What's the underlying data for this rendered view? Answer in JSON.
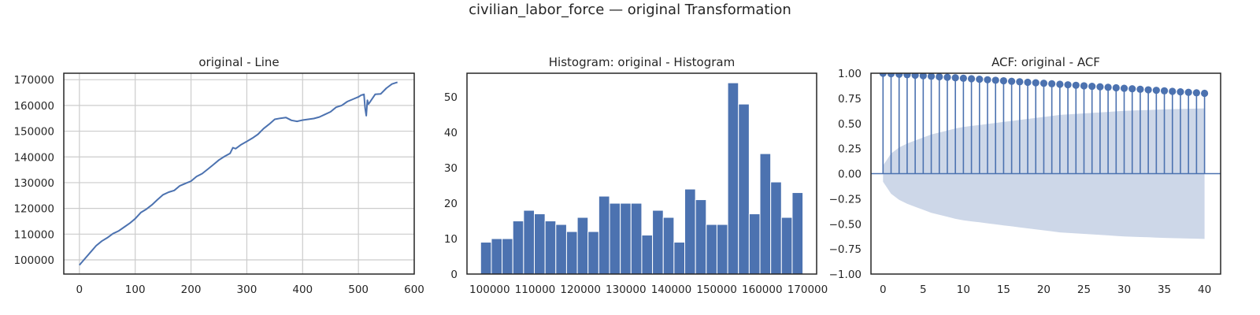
{
  "figure": {
    "title": "civilian_labor_force — original Transformation"
  },
  "colors": {
    "series": "#4c72b0",
    "confidence_band": "#cdd7e8",
    "grid": "#cccccc",
    "axes_edge": "#262626"
  },
  "chart_data": [
    {
      "type": "line",
      "title": "original - Line",
      "xlabel": "",
      "ylabel": "",
      "xlim": [
        -28,
        600
      ],
      "ylim": [
        94500,
        172500
      ],
      "xticks": [
        0,
        100,
        200,
        300,
        400,
        500,
        600
      ],
      "yticks": [
        100000,
        110000,
        120000,
        130000,
        140000,
        150000,
        160000,
        170000
      ],
      "grid": true,
      "x": [
        0,
        10,
        20,
        30,
        40,
        50,
        60,
        70,
        80,
        90,
        100,
        110,
        120,
        130,
        140,
        150,
        160,
        170,
        180,
        190,
        200,
        210,
        220,
        230,
        240,
        250,
        260,
        270,
        275,
        280,
        290,
        300,
        310,
        320,
        330,
        340,
        350,
        360,
        370,
        380,
        390,
        400,
        410,
        420,
        430,
        440,
        450,
        460,
        470,
        480,
        490,
        500,
        505,
        510,
        512,
        514,
        516,
        518,
        520,
        530,
        540,
        550,
        560,
        570
      ],
      "values": [
        98000,
        100500,
        103000,
        105500,
        107300,
        108600,
        110200,
        111200,
        112700,
        114200,
        116000,
        118400,
        119700,
        121400,
        123400,
        125300,
        126300,
        127000,
        128800,
        129700,
        130600,
        132400,
        133500,
        135200,
        137000,
        138800,
        140200,
        141400,
        143600,
        143200,
        144800,
        146000,
        147300,
        148800,
        151000,
        152700,
        154600,
        155000,
        155300,
        154200,
        153800,
        154300,
        154600,
        154900,
        155500,
        156500,
        157500,
        159300,
        160000,
        161500,
        162400,
        163300,
        164000,
        164300,
        159000,
        156000,
        162000,
        160500,
        161100,
        164300,
        164500,
        166700,
        168300,
        169000
      ]
    },
    {
      "type": "bar",
      "title": "Histogram: original - Histogram",
      "xlabel": "",
      "ylabel": "",
      "xlim": [
        95000,
        172000
      ],
      "ylim": [
        0,
        56.7
      ],
      "xticks": [
        100000,
        110000,
        120000,
        130000,
        140000,
        150000,
        160000,
        170000
      ],
      "yticks": [
        0,
        10,
        20,
        30,
        40,
        50
      ],
      "grid": false,
      "bin_start": 98000,
      "bin_width": 2366,
      "values": [
        9,
        10,
        10,
        15,
        18,
        17,
        15,
        14,
        12,
        16,
        12,
        22,
        20,
        20,
        20,
        11,
        18,
        16,
        9,
        24,
        21,
        14,
        14,
        54,
        48,
        17,
        34,
        26,
        16,
        23
      ]
    },
    {
      "type": "scatter",
      "title": "ACF: original - ACF",
      "xlabel": "",
      "ylabel": "",
      "xlim": [
        -1.5,
        42
      ],
      "ylim": [
        -1.0,
        1.0
      ],
      "xticks": [
        0,
        5,
        10,
        15,
        20,
        25,
        30,
        35,
        40
      ],
      "yticks": [
        -1.0,
        -0.75,
        -0.5,
        -0.25,
        0.0,
        0.25,
        0.5,
        0.75,
        1.0
      ],
      "ytick_labels": [
        "−1.00",
        "−0.75",
        "−0.50",
        "−0.25",
        "0.00",
        "0.25",
        "0.50",
        "0.75",
        "1.00"
      ],
      "grid": false,
      "lags": [
        0,
        1,
        2,
        3,
        4,
        5,
        6,
        7,
        8,
        9,
        10,
        11,
        12,
        13,
        14,
        15,
        16,
        17,
        18,
        19,
        20,
        21,
        22,
        23,
        24,
        25,
        26,
        27,
        28,
        29,
        30,
        31,
        32,
        33,
        34,
        35,
        36,
        37,
        38,
        39,
        40
      ],
      "values": [
        1.0,
        0.995,
        0.99,
        0.985,
        0.98,
        0.975,
        0.97,
        0.965,
        0.96,
        0.955,
        0.95,
        0.945,
        0.94,
        0.935,
        0.93,
        0.925,
        0.92,
        0.915,
        0.91,
        0.905,
        0.9,
        0.895,
        0.89,
        0.885,
        0.88,
        0.875,
        0.87,
        0.865,
        0.86,
        0.855,
        0.85,
        0.845,
        0.84,
        0.835,
        0.83,
        0.825,
        0.82,
        0.815,
        0.81,
        0.805,
        0.8
      ],
      "confidence_upper": [
        0.08,
        0.2,
        0.26,
        0.3,
        0.33,
        0.36,
        0.39,
        0.41,
        0.43,
        0.45,
        0.465,
        0.475,
        0.485,
        0.495,
        0.505,
        0.515,
        0.525,
        0.535,
        0.545,
        0.555,
        0.565,
        0.575,
        0.585,
        0.59,
        0.595,
        0.6,
        0.605,
        0.61,
        0.615,
        0.62,
        0.625,
        0.628,
        0.631,
        0.634,
        0.637,
        0.64,
        0.642,
        0.644,
        0.646,
        0.648,
        0.65
      ]
    }
  ]
}
